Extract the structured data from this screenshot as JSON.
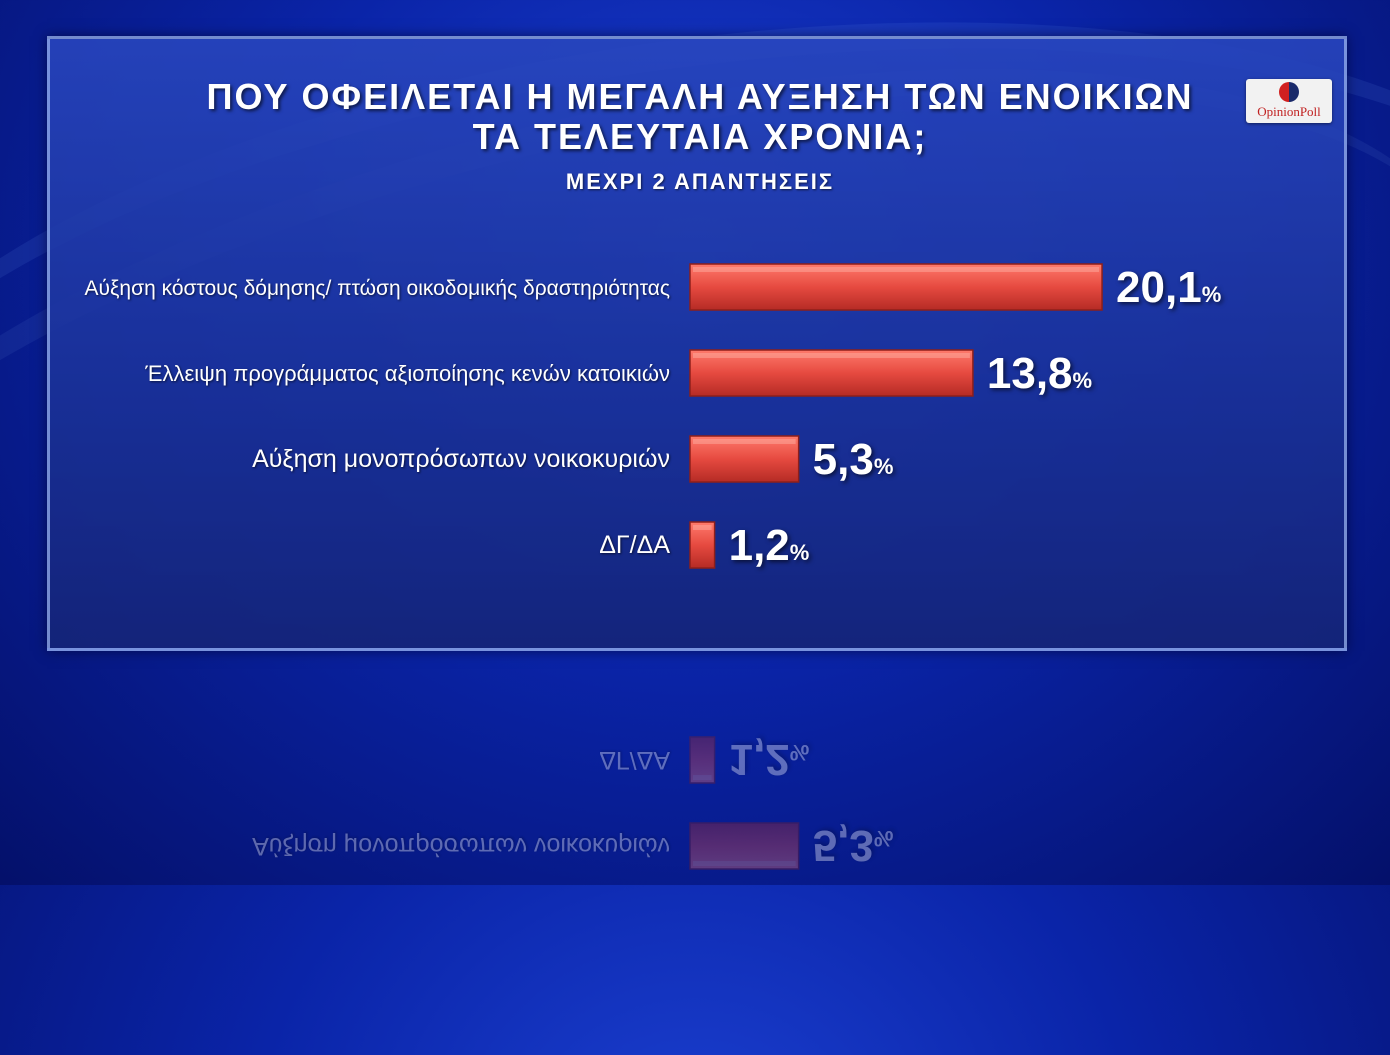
{
  "header": {
    "title_line1": "ΠΟΥ ΟΦΕΙΛΕΤΑΙ Η ΜΕΓΑΛΗ ΑΥΞΗΣΗ ΤΩΝ ΕΝΟΙΚΙΩΝ",
    "title_line2": "ΤΑ ΤΕΛΕΥΤΑΙΑ ΧΡΟΝΙΑ;",
    "subtitle": "ΜΕΧΡΙ 2 ΑΠΑΝΤΗΣΕΙΣ"
  },
  "logo": {
    "text": "OpinionPoll"
  },
  "colors": {
    "bar": "#e0453e",
    "bar_light": "#ff6b5e",
    "bar_dark": "#b8302a",
    "text": "#ffffff"
  },
  "chart_data": {
    "type": "bar",
    "orientation": "horizontal",
    "title": "ΠΟΥ ΟΦΕΙΛΕΤΑΙ Η ΜΕΓΑΛΗ ΑΥΞΗΣΗ ΤΩΝ ΕΝΟΙΚΙΩΝ ΤΑ ΤΕΛΕΥΤΑΙΑ ΧΡΟΝΙΑ;",
    "subtitle": "ΜΕΧΡΙ 2 ΑΠΑΝΤΗΣΕΙΣ",
    "categories": [
      "Αύξηση κόστους δόμησης/ πτώση οικοδομικής δραστηριότητας",
      "Έλλειψη προγράμματος αξιοποίησης κενών κατοικιών",
      "Αύξηση μονοπρόσωπων νοικοκυριών",
      "ΔΓ/ΔΑ"
    ],
    "values": [
      20.1,
      13.8,
      5.3,
      1.2
    ],
    "value_labels": [
      "20,1",
      "13,8",
      "5,3",
      "1,2"
    ],
    "unit": "%",
    "grid": false,
    "legend": "none"
  }
}
